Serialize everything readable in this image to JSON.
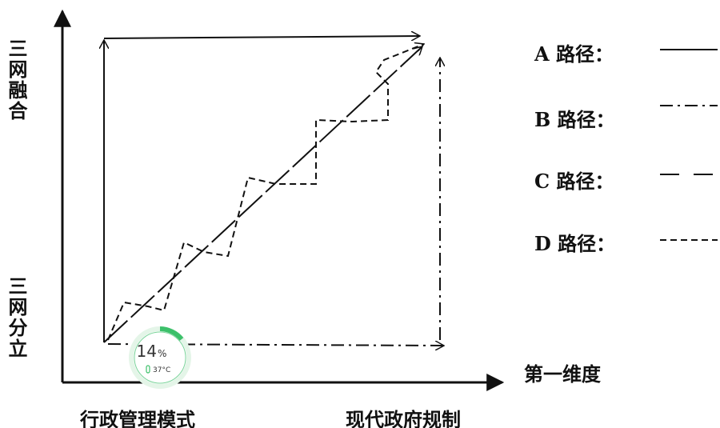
{
  "y_axis": {
    "top_label": "三网融合",
    "bottom_label": "三网分立"
  },
  "x_axis": {
    "title": "第一维度",
    "left_label": "行政管理模式",
    "right_label": "现代政府规制"
  },
  "legend": [
    {
      "label": "A 路径："
    },
    {
      "label": "B 路径："
    },
    {
      "label": "C 路径："
    },
    {
      "label": "D 路径："
    }
  ],
  "overlay": {
    "percent": "14",
    "percent_unit": "%",
    "temperature": "37°C"
  }
}
